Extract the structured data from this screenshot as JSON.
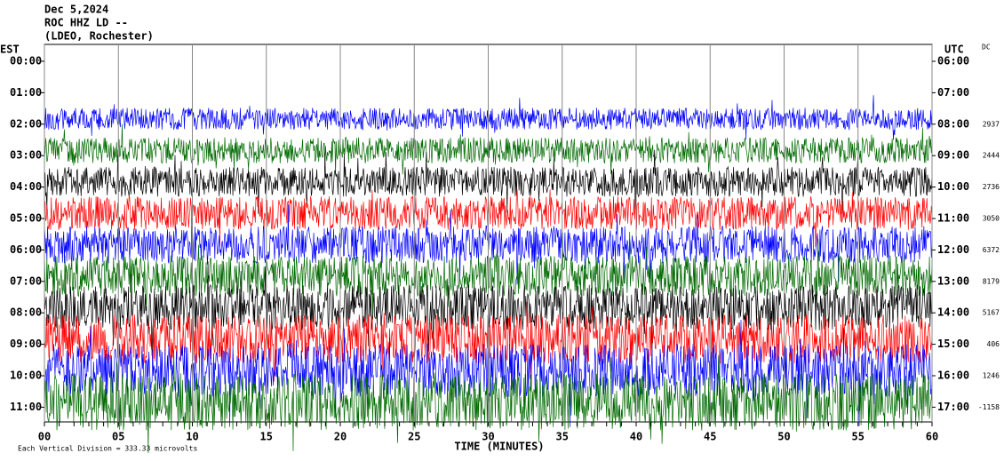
{
  "header": {
    "date": "Dec 5,2024",
    "station": "ROC HHZ LD --",
    "network": "(LDEO, Rochester)"
  },
  "chart_data": {
    "type": "helicorder",
    "left_axis_label": "EST",
    "right_axis_label": "UTC",
    "dc_label": "DC",
    "xlabel": "TIME (MINUTES)",
    "xlim": [
      0,
      60
    ],
    "xticks": [
      {
        "value": 0,
        "label": "00"
      },
      {
        "value": 5,
        "label": "05"
      },
      10,
      15,
      20,
      25,
      30,
      35,
      40,
      45,
      50,
      55,
      60
    ],
    "rows": [
      {
        "est": "00:00",
        "utc": "06:00",
        "dc": null,
        "color": null
      },
      {
        "est": "01:00",
        "utc": "07:00",
        "dc": null,
        "color": null
      },
      {
        "est": "02:00",
        "utc": "08:00",
        "dc": 2937,
        "color": "#0000ff"
      },
      {
        "est": "03:00",
        "utc": "09:00",
        "dc": 2444,
        "color": "#006a00"
      },
      {
        "est": "04:00",
        "utc": "10:00",
        "dc": 2736,
        "color": "#000000"
      },
      {
        "est": "05:00",
        "utc": "11:00",
        "dc": 3050,
        "color": "#ff0000"
      },
      {
        "est": "06:00",
        "utc": "12:00",
        "dc": 6372,
        "color": "#0000ff"
      },
      {
        "est": "07:00",
        "utc": "13:00",
        "dc": 8179,
        "color": "#006a00"
      },
      {
        "est": "08:00",
        "utc": "14:00",
        "dc": 5167,
        "color": "#000000"
      },
      {
        "est": "09:00",
        "utc": "15:00",
        "dc": 406,
        "color": "#ff0000"
      },
      {
        "est": "10:00",
        "utc": "16:00",
        "dc": 1246,
        "color": "#0000ff"
      },
      {
        "est": "11:00",
        "utc": "17:00",
        "dc": -1158,
        "color": "#006a00"
      }
    ],
    "footer": "Each Vertical Division = 333.33 microvolts"
  }
}
